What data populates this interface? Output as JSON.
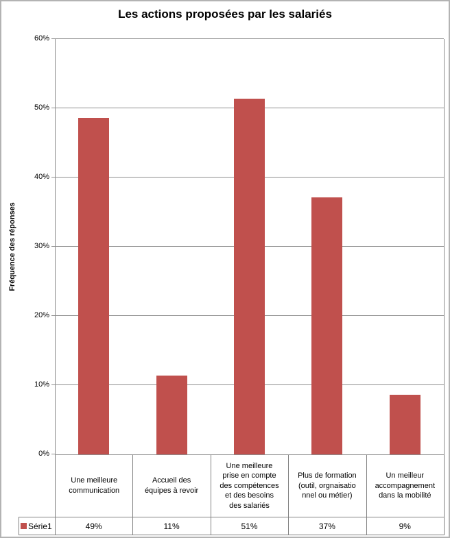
{
  "chart_data": {
    "type": "bar",
    "title": "Les actions proposées par les salariés",
    "xlabel": "",
    "ylabel": "Fréquence des réponses",
    "categories": [
      "Une meilleure\ncommunication",
      "Accueil des\néquipes à revoir",
      "Une meilleure\nprise en compte\ndes compétences\net des besoins\ndes salariés",
      "Plus de formation\n(outil, orgnaisatio\nnnel ou métier)",
      "Un  meilleur\naccompagnement\ndans la mobilité"
    ],
    "series": [
      {
        "name": "Série1",
        "color": "#C0504D",
        "values": [
          48.6,
          11.4,
          51.4,
          37.1,
          8.6
        ],
        "display_values": [
          "49%",
          "11%",
          "51%",
          "37%",
          "9%"
        ]
      }
    ],
    "ylim": [
      0,
      60
    ],
    "ytick_step": 10,
    "ytick_labels": [
      "0%",
      "10%",
      "20%",
      "30%",
      "40%",
      "50%",
      "60%"
    ],
    "grid": true,
    "legend_position": "bottom-data-table",
    "colors": {
      "bar": "#C0504D",
      "grid": "#8e8e8e",
      "axis": "#8e8e8e",
      "table_border": "#808080",
      "text": "#000000",
      "frame": "#b3b3b3"
    }
  }
}
